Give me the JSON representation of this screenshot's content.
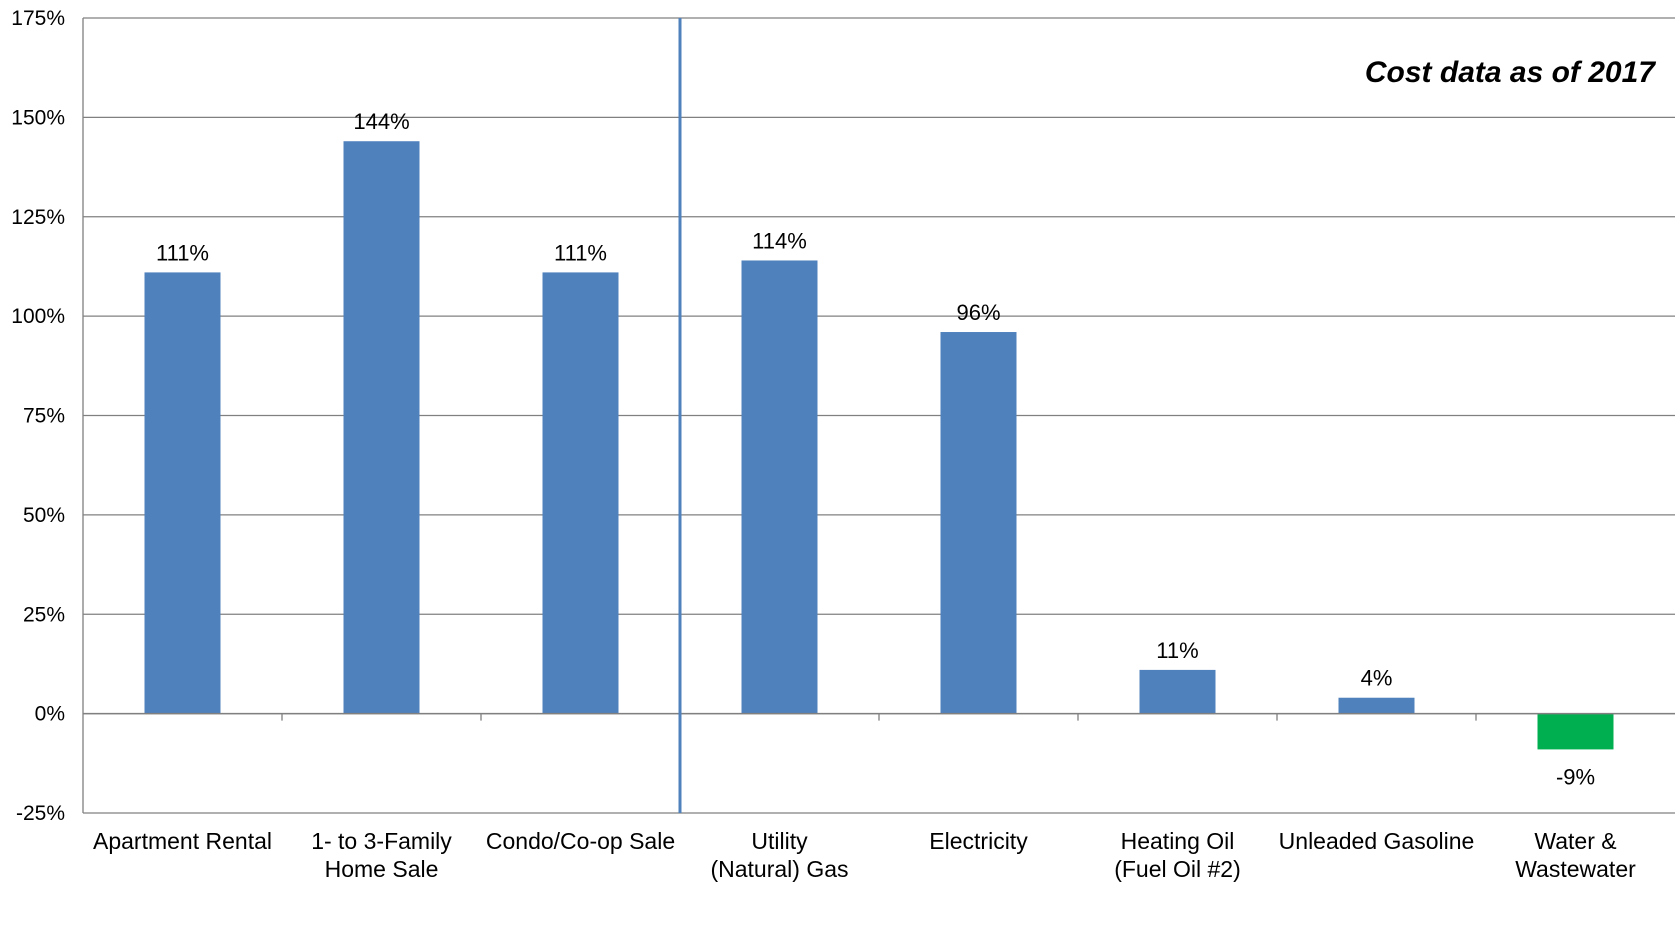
{
  "chart_data": {
    "type": "bar",
    "annotation": "Cost data as of 2017",
    "categories": [
      [
        "Apartment Rental"
      ],
      [
        "1- to 3-Family",
        "Home Sale"
      ],
      [
        "Condo/Co-op Sale"
      ],
      [
        "Utility",
        "(Natural) Gas"
      ],
      [
        "Electricity"
      ],
      [
        "Heating Oil",
        "(Fuel Oil #2)"
      ],
      [
        "Unleaded Gasoline"
      ],
      [
        "Water &",
        "Wastewater"
      ]
    ],
    "values": [
      111,
      144,
      111,
      114,
      96,
      11,
      4,
      -9
    ],
    "data_labels": [
      "111%",
      "144%",
      "111%",
      "114%",
      "96%",
      "11%",
      "4%",
      "-9%"
    ],
    "ylim": [
      -25,
      175
    ],
    "yticks": [
      -25,
      0,
      25,
      50,
      75,
      100,
      125,
      150,
      175
    ],
    "ytick_labels": [
      "-25%",
      "0%",
      "25%",
      "50%",
      "75%",
      "100%",
      "125%",
      "150%",
      "175%"
    ],
    "ylabel": "",
    "xlabel": "",
    "grid": true,
    "colors": {
      "positive": "#4f81bd",
      "negative": "#00b050",
      "gridline": "#808080",
      "divider": "#4f81bd"
    },
    "divider_after_index": 2
  }
}
